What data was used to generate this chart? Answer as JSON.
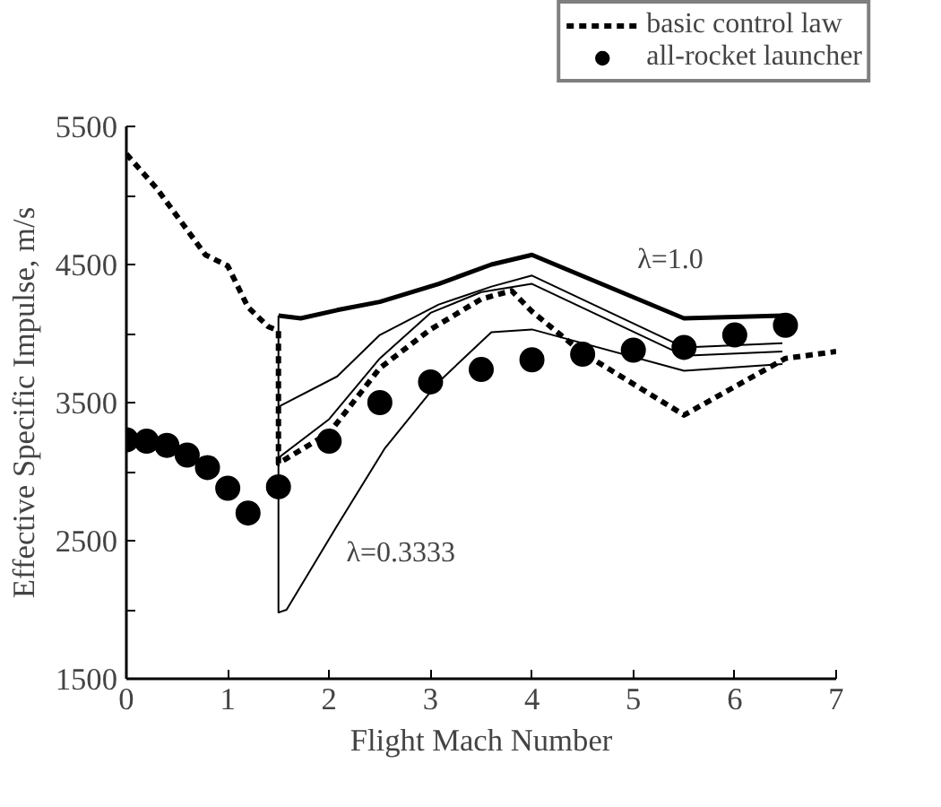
{
  "chart_data": {
    "type": "line",
    "xlabel": "Flight Mach Number",
    "ylabel": "Effective Specific Impulse, m/s",
    "xlim": [
      0,
      7
    ],
    "ylim": [
      1500,
      5500
    ],
    "xticks": [
      0,
      1,
      2,
      3,
      4,
      5,
      6,
      7
    ],
    "yticks": [
      1500,
      {
        "value": 2000,
        "label": null
      },
      2500,
      {
        "value": 3000,
        "label": null
      },
      3500,
      {
        "value": 4000,
        "label": null
      },
      4500,
      {
        "value": 5000,
        "label": null
      },
      5500
    ],
    "grid": false,
    "legend": "top right",
    "series": [
      {
        "name": "basic control law",
        "color": "#000000",
        "line_style": "dashed",
        "x": [
          0,
          0.3,
          0.78,
          1.0,
          1.2,
          1.4,
          1.5,
          1.5,
          2.0,
          2.5,
          3.0,
          3.5,
          3.8,
          4.0,
          4.5,
          5.5,
          6.5,
          7.0
        ],
        "values": [
          5300,
          5050,
          4570,
          4490,
          4190,
          4050,
          4020,
          3060,
          3280,
          3750,
          4030,
          4250,
          4310,
          4160,
          3860,
          3410,
          3820,
          3870
        ]
      },
      {
        "name": "all-rocket launcher",
        "type": "scatter",
        "marker": "circle",
        "color": "#000000",
        "x": [
          0,
          0.2,
          0.4,
          0.6,
          0.8,
          1.0,
          1.2,
          1.5,
          2.0,
          2.5,
          3.0,
          3.5,
          4.0,
          4.5,
          5.0,
          5.5,
          6.0,
          6.5
        ],
        "values": [
          3230,
          3220,
          3190,
          3120,
          3030,
          2880,
          2700,
          2890,
          3220,
          3500,
          3650,
          3740,
          3810,
          3850,
          3880,
          3900,
          3990,
          4060
        ]
      },
      {
        "color": "#000000",
        "x": [
          1.5,
          1.72,
          2.08,
          2.5,
          3.08,
          3.6,
          4.0,
          5.5,
          6.47,
          6.5
        ],
        "values": [
          4130,
          4110,
          4170,
          4230,
          4360,
          4500,
          4570,
          4110,
          4130,
          4130
        ]
      },
      {
        "color": "#000000",
        "x": [
          1.5,
          2.08,
          2.5,
          3.08,
          3.6,
          4.0,
          5.5,
          6.47
        ],
        "values": [
          3470,
          3690,
          3990,
          4210,
          4340,
          4420,
          3900,
          3930
        ]
      },
      {
        "color": "#000000",
        "x": [
          1.5,
          2.0,
          2.5,
          3.0,
          3.5,
          4.0,
          5.5,
          6.47
        ],
        "values": [
          3100,
          3380,
          3820,
          4150,
          4300,
          4360,
          3840,
          3870
        ]
      },
      {
        "color": "#000000",
        "x": [
          1.5,
          1.5,
          1.58,
          2.08,
          2.55,
          3.08,
          3.6,
          4.0,
          5.5,
          6.47
        ],
        "values": [
          4130,
          1980,
          2000,
          2610,
          3170,
          3650,
          4010,
          4030,
          3730,
          3780
        ]
      }
    ],
    "annotations": [
      "λ=1.0",
      "λ=0.3333"
    ]
  }
}
